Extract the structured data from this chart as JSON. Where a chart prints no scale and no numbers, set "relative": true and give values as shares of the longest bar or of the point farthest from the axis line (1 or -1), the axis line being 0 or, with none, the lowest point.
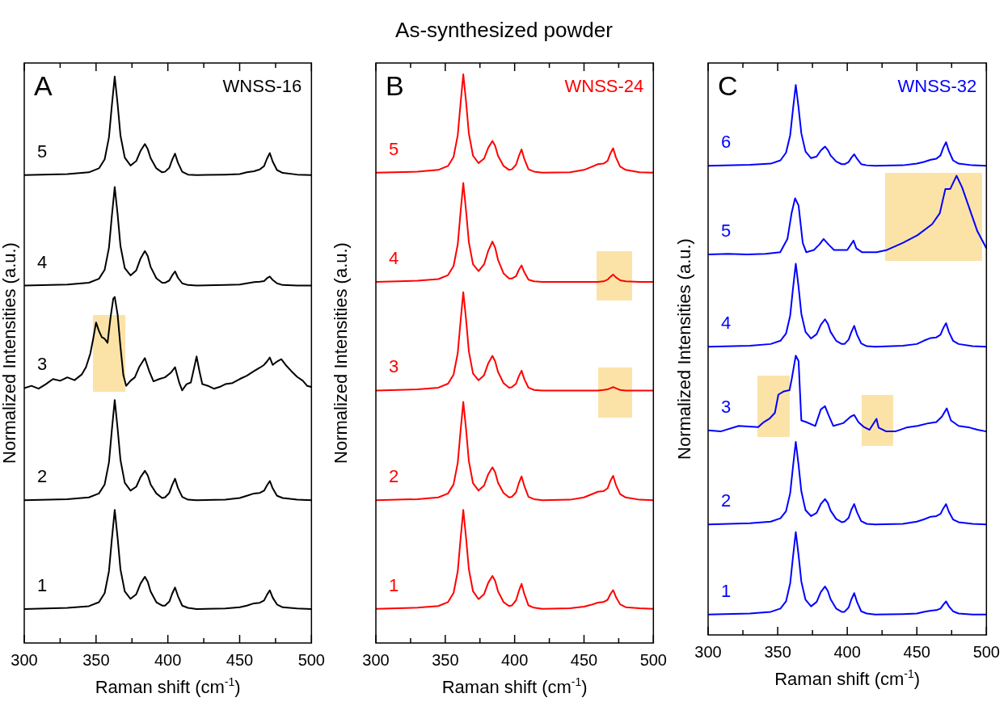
{
  "chart_data": [
    {
      "type": "line",
      "xlabel": "Raman shift (cm$^{-1}$)",
      "ylabel": "Normalized Intensities (a.u.)",
      "relative": true,
      "xlim": [
        300,
        500
      ],
      "xticks": [
        300,
        {
          "value": 325,
          "label": null
        },
        350,
        {
          "value": 375,
          "label": null
        },
        400,
        {
          "value": 425,
          "label": null
        },
        450,
        {
          "value": 475,
          "label": null
        },
        500
      ],
      "annotations": [
        "A",
        "WNSS-16"
      ],
      "x": [
        300,
        330,
        345,
        352,
        356,
        359,
        361,
        363,
        365,
        367,
        370,
        374,
        378,
        381,
        384,
        386,
        388,
        392,
        396,
        398,
        401,
        403,
        405,
        407,
        410,
        414,
        420,
        440,
        450,
        455,
        460,
        464,
        467,
        469,
        471,
        473,
        476,
        480,
        490,
        500
      ],
      "series": [
        {
          "name": "1",
          "color": "#000000",
          "values": [
            0.06,
            0.062,
            0.065,
            0.072,
            0.088,
            0.127,
            0.183,
            0.235,
            0.186,
            0.13,
            0.091,
            0.078,
            0.086,
            0.105,
            0.117,
            0.108,
            0.091,
            0.072,
            0.066,
            0.066,
            0.073,
            0.087,
            0.098,
            0.083,
            0.066,
            0.062,
            0.06,
            0.061,
            0.063,
            0.066,
            0.07,
            0.071,
            0.075,
            0.085,
            0.093,
            0.08,
            0.068,
            0.063,
            0.061,
            0.06
          ]
        },
        {
          "name": "2",
          "color": "#000000",
          "values": [
            0.252,
            0.254,
            0.257,
            0.264,
            0.28,
            0.319,
            0.376,
            0.429,
            0.379,
            0.323,
            0.283,
            0.269,
            0.276,
            0.293,
            0.304,
            0.296,
            0.28,
            0.264,
            0.256,
            0.257,
            0.265,
            0.279,
            0.29,
            0.274,
            0.258,
            0.253,
            0.252,
            0.253,
            0.256,
            0.26,
            0.264,
            0.265,
            0.269,
            0.278,
            0.286,
            0.273,
            0.26,
            0.256,
            0.253,
            0.252
          ]
        },
        {
          "name": "3",
          "color": "#000000",
          "x": [
            300,
            305,
            310,
            315,
            320,
            325,
            330,
            335,
            340,
            343,
            346,
            348,
            350,
            352,
            354,
            356,
            358,
            360,
            362,
            363,
            365,
            367,
            369,
            371,
            374,
            377,
            380,
            384,
            387,
            390,
            394,
            398,
            402,
            405,
            408,
            410,
            413,
            416,
            419,
            420,
            422,
            424,
            428,
            432,
            436,
            440,
            445,
            450,
            455,
            460,
            464,
            467,
            469,
            471,
            473,
            476,
            479,
            482,
            486,
            490,
            494,
            497,
            500
          ],
          "values": [
            0.45,
            0.454,
            0.449,
            0.457,
            0.466,
            0.463,
            0.469,
            0.464,
            0.474,
            0.487,
            0.511,
            0.537,
            0.566,
            0.551,
            0.54,
            0.537,
            0.53,
            0.573,
            0.608,
            0.611,
            0.58,
            0.523,
            0.473,
            0.454,
            0.463,
            0.469,
            0.487,
            0.503,
            0.48,
            0.462,
            0.466,
            0.469,
            0.477,
            0.487,
            0.459,
            0.446,
            0.457,
            0.46,
            0.494,
            0.506,
            0.48,
            0.457,
            0.454,
            0.449,
            0.452,
            0.457,
            0.459,
            0.466,
            0.472,
            0.48,
            0.486,
            0.491,
            0.497,
            0.504,
            0.491,
            0.497,
            0.501,
            0.491,
            0.48,
            0.47,
            0.463,
            0.454,
            0.452
          ]
        },
        {
          "name": "4",
          "color": "#000000",
          "values": [
            0.631,
            0.633,
            0.636,
            0.643,
            0.659,
            0.698,
            0.754,
            0.805,
            0.757,
            0.701,
            0.662,
            0.649,
            0.658,
            0.679,
            0.692,
            0.683,
            0.664,
            0.644,
            0.636,
            0.636,
            0.64,
            0.649,
            0.656,
            0.645,
            0.635,
            0.632,
            0.631,
            0.632,
            0.633,
            0.635,
            0.637,
            0.638,
            0.639,
            0.644,
            0.647,
            0.641,
            0.635,
            0.632,
            0.631,
            0.631
          ]
        },
        {
          "name": "5",
          "color": "#000000",
          "values": [
            0.826,
            0.828,
            0.831,
            0.838,
            0.854,
            0.893,
            0.949,
            1.0,
            0.952,
            0.896,
            0.857,
            0.843,
            0.851,
            0.869,
            0.881,
            0.872,
            0.856,
            0.838,
            0.831,
            0.832,
            0.839,
            0.853,
            0.864,
            0.848,
            0.832,
            0.827,
            0.826,
            0.827,
            0.828,
            0.831,
            0.833,
            0.836,
            0.842,
            0.855,
            0.865,
            0.85,
            0.835,
            0.83,
            0.827,
            0.826
          ]
        }
      ]
    },
    {
      "type": "line",
      "title": "As-synthesized powder",
      "xlabel": "Raman shift (cm$^{-1}$)",
      "ylabel": "Normalized Intensities (a.u.)",
      "relative": true,
      "xlim": [
        300,
        500
      ],
      "xticks": [
        300,
        {
          "value": 325,
          "label": null
        },
        350,
        {
          "value": 375,
          "label": null
        },
        400,
        {
          "value": 425,
          "label": null
        },
        450,
        {
          "value": 475,
          "label": null
        },
        500
      ],
      "annotations": [
        "B",
        "WNSS-24"
      ],
      "x": [
        300,
        330,
        345,
        352,
        356,
        359,
        361,
        363,
        365,
        367,
        370,
        374,
        378,
        381,
        384,
        386,
        388,
        392,
        396,
        398,
        401,
        403,
        405,
        407,
        410,
        414,
        420,
        440,
        450,
        455,
        460,
        464,
        467,
        469,
        471,
        473,
        476,
        480,
        490,
        500
      ],
      "series": [
        {
          "name": "1",
          "color": "#ff0000",
          "values": [
            0.06,
            0.062,
            0.065,
            0.072,
            0.088,
            0.126,
            0.182,
            0.234,
            0.185,
            0.13,
            0.091,
            0.077,
            0.086,
            0.106,
            0.118,
            0.109,
            0.091,
            0.072,
            0.065,
            0.066,
            0.075,
            0.091,
            0.104,
            0.086,
            0.066,
            0.062,
            0.06,
            0.061,
            0.064,
            0.067,
            0.071,
            0.072,
            0.076,
            0.086,
            0.093,
            0.081,
            0.068,
            0.063,
            0.061,
            0.06
          ]
        },
        {
          "name": "2",
          "color": "#ff0000",
          "values": [
            0.251,
            0.253,
            0.256,
            0.263,
            0.279,
            0.317,
            0.372,
            0.424,
            0.376,
            0.32,
            0.281,
            0.268,
            0.277,
            0.297,
            0.309,
            0.3,
            0.282,
            0.264,
            0.256,
            0.257,
            0.265,
            0.281,
            0.293,
            0.276,
            0.257,
            0.253,
            0.251,
            0.252,
            0.256,
            0.261,
            0.266,
            0.267,
            0.272,
            0.285,
            0.294,
            0.278,
            0.262,
            0.256,
            0.252,
            0.251
          ]
        },
        {
          "name": "3",
          "color": "#ff0000",
          "values": [
            0.444,
            0.446,
            0.449,
            0.456,
            0.472,
            0.51,
            0.565,
            0.617,
            0.569,
            0.513,
            0.474,
            0.462,
            0.471,
            0.492,
            0.505,
            0.495,
            0.477,
            0.457,
            0.449,
            0.45,
            0.456,
            0.469,
            0.479,
            0.464,
            0.449,
            0.445,
            0.444,
            0.444,
            0.444,
            0.444,
            0.444,
            0.445,
            0.446,
            0.448,
            0.45,
            0.448,
            0.445,
            0.444,
            0.444,
            0.444
          ]
        },
        {
          "name": "4",
          "color": "#ff0000",
          "values": [
            0.635,
            0.637,
            0.64,
            0.647,
            0.663,
            0.701,
            0.757,
            0.809,
            0.76,
            0.705,
            0.666,
            0.654,
            0.666,
            0.69,
            0.706,
            0.695,
            0.674,
            0.65,
            0.641,
            0.641,
            0.645,
            0.656,
            0.664,
            0.652,
            0.639,
            0.636,
            0.635,
            0.635,
            0.635,
            0.635,
            0.635,
            0.636,
            0.639,
            0.644,
            0.648,
            0.643,
            0.638,
            0.636,
            0.635,
            0.635
          ]
        },
        {
          "name": "5",
          "color": "#ff0000",
          "values": [
            0.827,
            0.829,
            0.832,
            0.839,
            0.855,
            0.893,
            0.948,
            1.0,
            0.952,
            0.896,
            0.857,
            0.844,
            0.852,
            0.871,
            0.883,
            0.874,
            0.857,
            0.839,
            0.832,
            0.833,
            0.841,
            0.856,
            0.868,
            0.851,
            0.833,
            0.829,
            0.827,
            0.828,
            0.832,
            0.837,
            0.842,
            0.843,
            0.848,
            0.861,
            0.87,
            0.854,
            0.838,
            0.832,
            0.828,
            0.827
          ]
        }
      ]
    },
    {
      "type": "line",
      "xlabel": "Raman shift (cm$^{-1}$)",
      "ylabel": "Normalized Intensities (a.u.)",
      "relative": true,
      "xlim": [
        300,
        500
      ],
      "xticks": [
        300,
        {
          "value": 325,
          "label": null
        },
        350,
        {
          "value": 375,
          "label": null
        },
        400,
        {
          "value": 425,
          "label": null
        },
        450,
        {
          "value": 475,
          "label": null
        },
        500
      ],
      "annotations": [
        "C",
        "WNSS-32"
      ],
      "x": [
        300,
        330,
        345,
        352,
        356,
        359,
        361,
        363,
        365,
        367,
        370,
        374,
        378,
        381,
        384,
        386,
        388,
        392,
        396,
        398,
        401,
        403,
        405,
        407,
        410,
        414,
        420,
        440,
        450,
        455,
        460,
        464,
        467,
        469,
        471,
        473,
        476,
        480,
        490,
        500
      ],
      "series": [
        {
          "name": "1",
          "color": "#0000ff",
          "values": [
            0.037,
            0.039,
            0.042,
            0.048,
            0.061,
            0.094,
            0.142,
            0.187,
            0.145,
            0.097,
            0.064,
            0.052,
            0.06,
            0.078,
            0.088,
            0.08,
            0.065,
            0.048,
            0.042,
            0.042,
            0.05,
            0.065,
            0.076,
            0.06,
            0.043,
            0.039,
            0.037,
            0.038,
            0.039,
            0.042,
            0.044,
            0.045,
            0.048,
            0.055,
            0.061,
            0.052,
            0.043,
            0.039,
            0.037,
            0.037
          ]
        },
        {
          "name": "2",
          "color": "#0000ff",
          "values": [
            0.201,
            0.203,
            0.206,
            0.212,
            0.225,
            0.258,
            0.306,
            0.351,
            0.309,
            0.261,
            0.227,
            0.216,
            0.222,
            0.238,
            0.247,
            0.24,
            0.226,
            0.211,
            0.205,
            0.206,
            0.213,
            0.228,
            0.238,
            0.223,
            0.207,
            0.202,
            0.201,
            0.202,
            0.206,
            0.21,
            0.215,
            0.216,
            0.22,
            0.23,
            0.238,
            0.224,
            0.21,
            0.205,
            0.202,
            0.201
          ]
        },
        {
          "name": "3",
          "color": "#0000ff",
          "x": [
            300,
            309,
            322,
            336,
            340,
            344,
            348,
            350.5,
            354.5,
            358.5,
            360,
            363,
            365,
            367,
            370.5,
            377,
            381,
            384,
            386.5,
            390,
            397,
            402.5,
            405,
            408,
            412,
            416,
            421,
            422.5,
            428,
            434.5,
            442.5,
            450.5,
            458.5,
            464,
            468,
            471.5,
            474.5,
            480,
            488,
            493.5,
            500
          ],
          "values": [
            0.372,
            0.37,
            0.38,
            0.378,
            0.387,
            0.393,
            0.404,
            0.437,
            0.443,
            0.445,
            0.464,
            0.508,
            0.498,
            0.39,
            0.387,
            0.38,
            0.41,
            0.416,
            0.4,
            0.38,
            0.385,
            0.397,
            0.4,
            0.387,
            0.378,
            0.373,
            0.393,
            0.377,
            0.37,
            0.37,
            0.377,
            0.38,
            0.385,
            0.387,
            0.397,
            0.412,
            0.39,
            0.38,
            0.377,
            0.373,
            0.37
          ]
        },
        {
          "name": "4",
          "color": "#0000ff",
          "values": [
            0.524,
            0.526,
            0.529,
            0.535,
            0.548,
            0.581,
            0.63,
            0.675,
            0.633,
            0.584,
            0.551,
            0.539,
            0.547,
            0.564,
            0.574,
            0.566,
            0.551,
            0.535,
            0.529,
            0.529,
            0.537,
            0.551,
            0.562,
            0.546,
            0.53,
            0.525,
            0.524,
            0.526,
            0.529,
            0.535,
            0.54,
            0.541,
            0.546,
            0.558,
            0.567,
            0.551,
            0.535,
            0.529,
            0.525,
            0.524
          ]
        },
        {
          "name": "5",
          "color": "#0000ff",
          "x": [
            300,
            314.4,
            327.8,
            341.2,
            351.8,
            357,
            360,
            362.5,
            365,
            368,
            370.5,
            376,
            380,
            383,
            386.5,
            390.5,
            400,
            404.5,
            406.5,
            410.5,
            421,
            428.5,
            440,
            450.5,
            461,
            466.5,
            470.5,
            474,
            478.5,
            482.5,
            488,
            493.5,
            500
          ],
          "values": [
            0.692,
            0.693,
            0.692,
            0.693,
            0.696,
            0.72,
            0.767,
            0.794,
            0.781,
            0.713,
            0.696,
            0.7,
            0.71,
            0.72,
            0.71,
            0.7,
            0.7,
            0.717,
            0.703,
            0.696,
            0.696,
            0.7,
            0.713,
            0.727,
            0.747,
            0.767,
            0.811,
            0.811,
            0.835,
            0.814,
            0.774,
            0.734,
            0.703
          ]
        },
        {
          "name": "6",
          "color": "#0000ff",
          "values": [
            0.853,
            0.855,
            0.857,
            0.863,
            0.877,
            0.909,
            0.956,
            1.0,
            0.959,
            0.912,
            0.879,
            0.867,
            0.87,
            0.881,
            0.888,
            0.882,
            0.872,
            0.861,
            0.856,
            0.856,
            0.86,
            0.868,
            0.874,
            0.866,
            0.856,
            0.854,
            0.853,
            0.854,
            0.857,
            0.86,
            0.864,
            0.866,
            0.872,
            0.886,
            0.896,
            0.88,
            0.863,
            0.857,
            0.854,
            0.853
          ]
        }
      ]
    }
  ]
}
